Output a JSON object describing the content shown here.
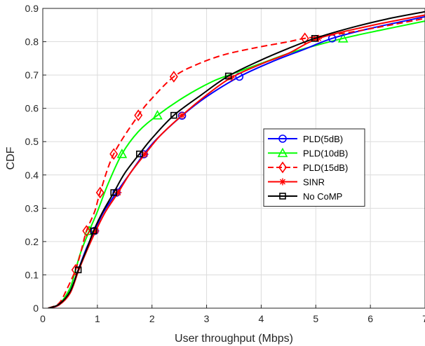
{
  "chart_data": {
    "type": "line",
    "title": "",
    "xlabel": "User throughput (Mbps)",
    "ylabel": "CDF",
    "xlim": [
      0,
      7
    ],
    "ylim": [
      0,
      0.9
    ],
    "xticks": [
      "0",
      "1",
      "2",
      "3",
      "4",
      "5",
      "6",
      "7"
    ],
    "yticks": [
      "0",
      "0.1",
      "0.2",
      "0.3",
      "0.4",
      "0.5",
      "0.6",
      "0.7",
      "0.8",
      "0.9"
    ],
    "grid": true,
    "legend_position": "center-right",
    "series": [
      {
        "name": "PLD(5dB)",
        "color": "#0000ff",
        "marker": "circle",
        "dash": "solid",
        "x": [
          0.1,
          0.3,
          0.5,
          0.65,
          0.8,
          0.95,
          1.1,
          1.35,
          1.6,
          1.85,
          2.1,
          2.55,
          3.0,
          3.6,
          4.2,
          4.8,
          5.3,
          6.0,
          7.0
        ],
        "y": [
          0.0,
          0.01,
          0.05,
          0.115,
          0.18,
          0.232,
          0.285,
          0.347,
          0.405,
          0.462,
          0.51,
          0.578,
          0.635,
          0.695,
          0.74,
          0.778,
          0.81,
          0.84,
          0.875
        ],
        "markers_x": [
          0.95,
          1.35,
          1.85,
          2.55,
          3.6,
          5.3
        ],
        "markers_y": [
          0.232,
          0.347,
          0.462,
          0.578,
          0.695,
          0.81
        ]
      },
      {
        "name": "PLD(10dB)",
        "color": "#00ff00",
        "marker": "triangle",
        "dash": "solid",
        "x": [
          0.1,
          0.3,
          0.5,
          0.6,
          0.7,
          0.85,
          1.0,
          1.2,
          1.45,
          1.75,
          2.1,
          2.6,
          3.1,
          3.5,
          4.0,
          4.6,
          5.5,
          6.2,
          7.0
        ],
        "y": [
          0.0,
          0.012,
          0.06,
          0.115,
          0.17,
          0.232,
          0.29,
          0.375,
          0.463,
          0.53,
          0.579,
          0.635,
          0.68,
          0.705,
          0.735,
          0.77,
          0.81,
          0.835,
          0.862
        ],
        "markers_x": [
          0.85,
          1.45,
          2.1,
          5.5
        ],
        "markers_y": [
          0.232,
          0.463,
          0.579,
          0.81
        ]
      },
      {
        "name": "PLD(15dB)",
        "color": "#ff0000",
        "marker": "diamond",
        "dash": "dashed",
        "x": [
          0.1,
          0.3,
          0.45,
          0.6,
          0.7,
          0.8,
          0.95,
          1.05,
          1.3,
          1.75,
          2.0,
          2.4,
          2.8,
          3.3,
          3.9,
          4.5,
          4.8,
          5.5,
          6.2,
          7.0
        ],
        "y": [
          0.0,
          0.015,
          0.06,
          0.115,
          0.17,
          0.232,
          0.29,
          0.347,
          0.463,
          0.579,
          0.63,
          0.695,
          0.73,
          0.76,
          0.782,
          0.8,
          0.81,
          0.825,
          0.845,
          0.87
        ],
        "markers_x": [
          0.6,
          0.8,
          1.05,
          1.3,
          1.75,
          2.4,
          4.8
        ],
        "markers_y": [
          0.115,
          0.232,
          0.347,
          0.463,
          0.579,
          0.695,
          0.81
        ]
      },
      {
        "name": "SINR",
        "color": "#ff0000",
        "marker": "asterisk",
        "dash": "solid",
        "x": [
          0.1,
          0.3,
          0.5,
          0.65,
          0.8,
          0.97,
          1.15,
          1.38,
          1.6,
          1.87,
          2.15,
          2.55,
          3.0,
          3.45,
          4.0,
          4.5,
          5.05,
          6.0,
          7.0
        ],
        "y": [
          0.0,
          0.01,
          0.045,
          0.11,
          0.17,
          0.232,
          0.29,
          0.347,
          0.405,
          0.462,
          0.518,
          0.579,
          0.64,
          0.692,
          0.733,
          0.765,
          0.81,
          0.848,
          0.88
        ],
        "markers_x": [
          0.97,
          1.38,
          1.87,
          2.55,
          3.45,
          5.05
        ],
        "markers_y": [
          0.232,
          0.347,
          0.462,
          0.579,
          0.692,
          0.81
        ]
      },
      {
        "name": "No CoMP",
        "color": "#000000",
        "marker": "square",
        "dash": "solid",
        "x": [
          0.1,
          0.3,
          0.5,
          0.65,
          0.8,
          0.93,
          1.1,
          1.3,
          1.5,
          1.77,
          2.0,
          2.4,
          2.9,
          3.4,
          4.0,
          4.5,
          4.98,
          5.6,
          6.3,
          7.0
        ],
        "y": [
          0.0,
          0.012,
          0.05,
          0.115,
          0.175,
          0.232,
          0.29,
          0.347,
          0.405,
          0.463,
          0.51,
          0.579,
          0.64,
          0.697,
          0.745,
          0.78,
          0.81,
          0.84,
          0.868,
          0.89
        ],
        "markers_x": [
          0.65,
          0.93,
          1.3,
          1.77,
          2.4,
          3.4,
          4.98
        ],
        "markers_y": [
          0.115,
          0.232,
          0.347,
          0.463,
          0.579,
          0.697,
          0.81
        ]
      }
    ]
  }
}
